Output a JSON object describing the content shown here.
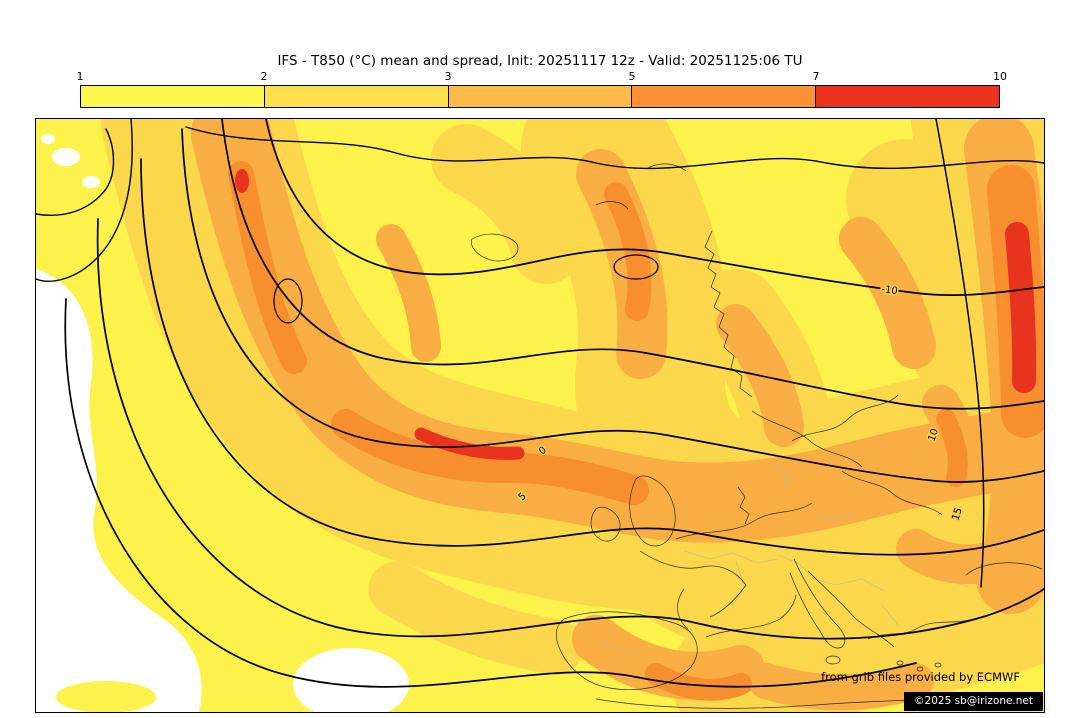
{
  "header": {
    "title": "IFS - T850 (°C) mean and spread, Init: 20251117 12z - Valid: 20251125:06 TU"
  },
  "colorbar": {
    "tick_labels": [
      "1",
      "2",
      "3",
      "5",
      "7",
      "10"
    ],
    "segment_colors": [
      "#fcf64d",
      "#fcdf4b",
      "#fcbb49",
      "#fa9135",
      "#e9331f"
    ]
  },
  "map": {
    "contour_labels": {
      "l_m10": "-10",
      "l_0": "0",
      "l_5": "5",
      "l_10": "10",
      "l_15": "15"
    },
    "attribution_line": "from grib files provided by ECMWF",
    "copyright": "©2025 sb@irizone.net"
  },
  "chart_data": {
    "type": "heatmap",
    "subtype": "filled-contour ensemble spread map with mean temperature contours over Europe / North Atlantic",
    "title": "IFS - T850 (°C) mean and spread, Init: 20251117 12z - Valid: 20251125:06 TU",
    "model": "IFS",
    "variable": "T850 (°C) mean and spread",
    "init": "20251117 12z",
    "valid": "20251125:06 TU",
    "colorbar": {
      "orientation": "horizontal",
      "position": "top",
      "boundaries": [
        1,
        2,
        3,
        5,
        7,
        10
      ],
      "segment_colors": [
        "#fcf64d",
        "#fcdf4b",
        "#fcbb49",
        "#fa9135",
        "#e9331f"
      ],
      "below_min_color": "#ffffff"
    },
    "mean_contour_labels_visible": [
      -10,
      0,
      5,
      10,
      15
    ],
    "attribution": [
      "from grib files provided by ECMWF",
      "©2025 sb@irizone.net"
    ]
  }
}
